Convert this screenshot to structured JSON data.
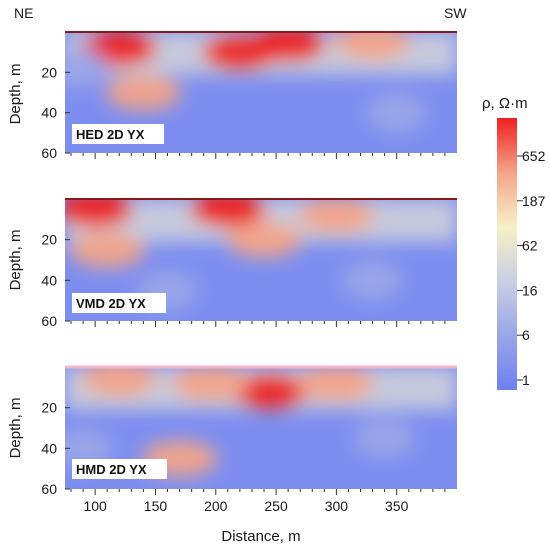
{
  "header": {
    "left_label": "NE",
    "right_label": "SW"
  },
  "chart_data": {
    "type": "heatmap",
    "xlabel": "Distance, m",
    "ylabel": "Depth, m",
    "xlim": [
      75,
      400
    ],
    "ylim": [
      0,
      60
    ],
    "x_ticks": [
      100,
      150,
      200,
      250,
      300,
      350
    ],
    "y_ticks": [
      20,
      40,
      60
    ],
    "colorbar": {
      "title": "ρ, Ω·m",
      "ticks": [
        "652",
        "187",
        "62",
        "16",
        "6",
        "1"
      ],
      "scale": "log",
      "colors": [
        "#6f7ff0",
        "#9aa6e8",
        "#c9cfe4",
        "#f6f0c8",
        "#f4a488",
        "#ee2020"
      ]
    },
    "panels": [
      {
        "label": "HED 2D YX",
        "anomalies": [
          {
            "x": 120,
            "z": 8,
            "rho": 800
          },
          {
            "x": 220,
            "z": 10,
            "rho": 900
          },
          {
            "x": 260,
            "z": 6,
            "rho": 700
          },
          {
            "x": 140,
            "z": 30,
            "rho": 500
          },
          {
            "x": 330,
            "z": 5,
            "rho": 300
          },
          {
            "x": 85,
            "z": 18,
            "rho": 3
          },
          {
            "x": 350,
            "z": 40,
            "rho": 3
          }
        ]
      },
      {
        "label": "VMD 2D YX",
        "anomalies": [
          {
            "x": 100,
            "z": 5,
            "rho": 900
          },
          {
            "x": 110,
            "z": 25,
            "rho": 300
          },
          {
            "x": 210,
            "z": 5,
            "rho": 600
          },
          {
            "x": 240,
            "z": 20,
            "rho": 250
          },
          {
            "x": 300,
            "z": 8,
            "rho": 350
          },
          {
            "x": 160,
            "z": 45,
            "rho": 5
          },
          {
            "x": 330,
            "z": 40,
            "rho": 4
          }
        ]
      },
      {
        "label": "HMD 2D YX",
        "anomalies": [
          {
            "x": 245,
            "z": 12,
            "rho": 900
          },
          {
            "x": 195,
            "z": 8,
            "rho": 500
          },
          {
            "x": 120,
            "z": 6,
            "rho": 400
          },
          {
            "x": 170,
            "z": 45,
            "rho": 250
          },
          {
            "x": 300,
            "z": 8,
            "rho": 300
          },
          {
            "x": 90,
            "z": 40,
            "rho": 4
          },
          {
            "x": 340,
            "z": 35,
            "rho": 4
          }
        ]
      }
    ]
  }
}
